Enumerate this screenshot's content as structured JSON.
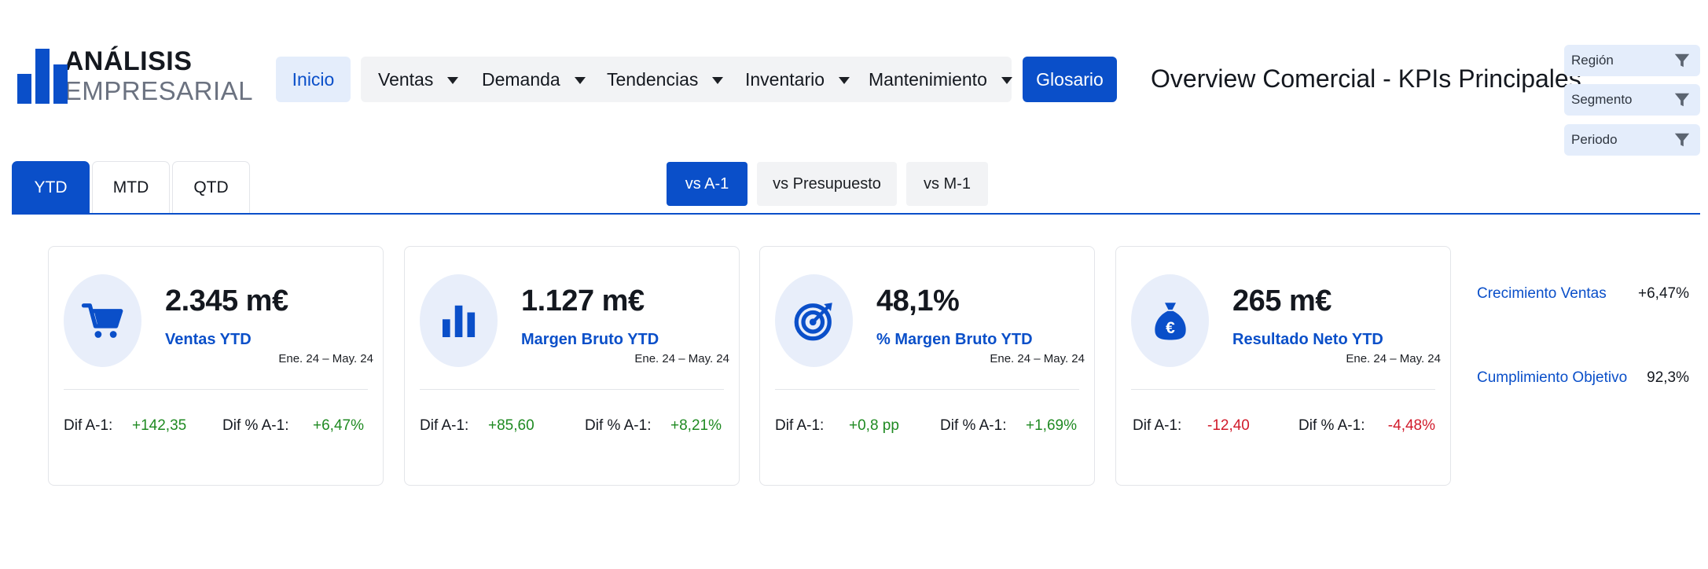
{
  "logo": {
    "line1": "ANÁLISIS",
    "line2": "EMPRESARIAL",
    "icon": "bar-chart-logo-icon"
  },
  "nav": {
    "home": "Inicio",
    "menus": [
      {
        "label": "Ventas"
      },
      {
        "label": "Demanda"
      },
      {
        "label": "Tendencias"
      },
      {
        "label": "Inventario"
      },
      {
        "label": "Mantenimiento"
      }
    ],
    "glossary": "Glosario"
  },
  "page_title": "Overview Comercial - KPIs Principales",
  "filters": [
    {
      "label": "Región",
      "icon": "filter-icon"
    },
    {
      "label": "Segmento",
      "icon": "filter-icon"
    },
    {
      "label": "Periodo",
      "icon": "filter-icon"
    }
  ],
  "period_tabs": [
    "YTD",
    "MTD",
    "QTD"
  ],
  "active_period_tab": "YTD",
  "comparison_tabs": [
    "vs A-1",
    "vs Presupuesto",
    "vs M-1"
  ],
  "active_comparison_tab": "vs A-1",
  "colors": {
    "accent": "#0a4fc9",
    "accent_light": "#e4edfb",
    "positive": "#1f8a22",
    "negative": "#d11a2a"
  },
  "kpis": [
    {
      "icon": "shopping-cart-icon",
      "value": "2.345 m€",
      "label": "Ventas YTD",
      "period": "Ene. 24 – May. 24",
      "diff_label": "Dif A-1:",
      "diff_value": "+142,35",
      "diff_pct_label": "Dif % A-1:",
      "diff_pct_value": "+6,47%",
      "trend": "positive"
    },
    {
      "icon": "bar-chart-icon",
      "value": "1.127 m€",
      "label": "Margen Bruto YTD",
      "period": "Ene. 24 – May. 24",
      "diff_label": "Dif A-1:",
      "diff_value": "+85,60",
      "diff_pct_label": "Dif % A-1:",
      "diff_pct_value": "+8,21%",
      "trend": "positive"
    },
    {
      "icon": "target-icon",
      "value": "48,1%",
      "label": "% Margen Bruto YTD",
      "period": "Ene. 24 – May. 24",
      "diff_label": "Dif A-1:",
      "diff_value": "+0,8 pp",
      "diff_pct_label": "Dif % A-1:",
      "diff_pct_value": "+1,69%",
      "trend": "positive"
    },
    {
      "icon": "euro-money-bag-icon",
      "value": "265 m€",
      "label": "Resultado Neto YTD",
      "period": "Ene. 24 – May. 24",
      "diff_label": "Dif A-1:",
      "diff_value": "-12,40",
      "diff_pct_label": "Dif % A-1:",
      "diff_pct_value": "-4,48%",
      "trend": "negative"
    }
  ],
  "side_metrics": [
    {
      "label": "Crecimiento Ventas",
      "value": "+6,47%"
    },
    {
      "label": "Cumplimiento Objetivo",
      "value": "92,3%"
    }
  ]
}
